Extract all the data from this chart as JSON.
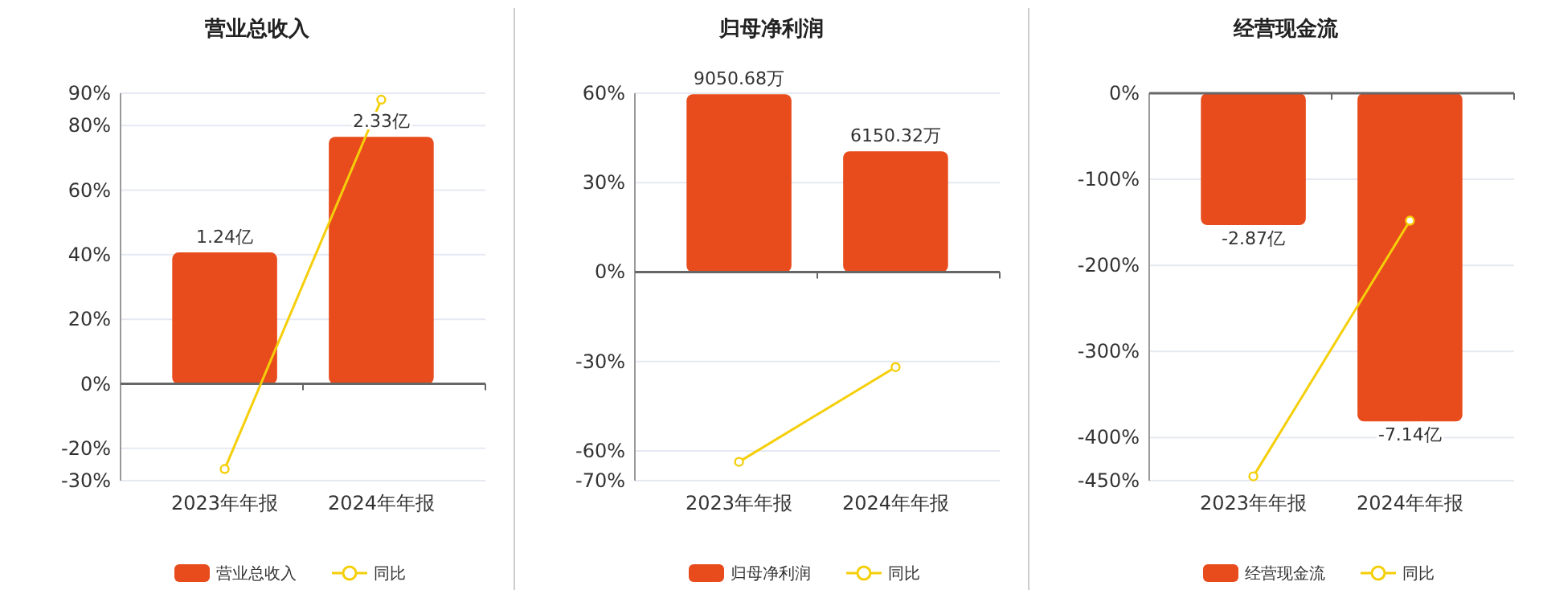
{
  "chart_data": [
    {
      "type": "bar",
      "title": "营业总收入",
      "categories": [
        "2023年年报",
        "2024年年报"
      ],
      "series": [
        {
          "name": "营业总收入",
          "axis": "y2",
          "color": "#e84c1c",
          "values": [
            1.24,
            2.33
          ],
          "value_labels": [
            "1.24亿",
            "2.33亿"
          ]
        },
        {
          "name": "同比",
          "type": "line",
          "color": "#f5cf0a",
          "values": [
            -26.4,
            88
          ]
        }
      ],
      "ylim": [
        -30,
        90
      ],
      "yticks": [
        {
          "value": -30,
          "label": "-30%"
        },
        {
          "value": -20,
          "label": "-20%"
        },
        {
          "value": 0,
          "label": "0%"
        },
        {
          "value": 20,
          "label": "20%"
        },
        {
          "value": 40,
          "label": "40%"
        },
        {
          "value": 60,
          "label": "60%"
        },
        {
          "value": 80,
          "label": "80%"
        },
        {
          "value": 90,
          "label": "90%"
        }
      ],
      "y2lim": [
        -0.91,
        2.74
      ],
      "grid": "y",
      "legend": "bottom",
      "marker": "circle"
    },
    {
      "type": "bar",
      "title": "归母净利润",
      "categories": [
        "2023年年报",
        "2024年年报"
      ],
      "series": [
        {
          "name": "归母净利润",
          "axis": "y2",
          "color": "#e84c1c",
          "values": [
            9050.68,
            6150.32
          ],
          "value_labels": [
            "9050.68万",
            "6150.32万"
          ]
        },
        {
          "name": "同比",
          "type": "line",
          "color": "#f5cf0a",
          "values": [
            -63.7,
            -31.9
          ]
        }
      ],
      "ylim": [
        -70,
        60
      ],
      "yticks": [
        {
          "value": -70,
          "label": "-70%"
        },
        {
          "value": -60,
          "label": "-60%"
        },
        {
          "value": -30,
          "label": "-30%"
        },
        {
          "value": 0,
          "label": "0%"
        },
        {
          "value": 30,
          "label": "30%"
        },
        {
          "value": 60,
          "label": "60%"
        }
      ],
      "y2lim": [
        -10610,
        9100
      ],
      "grid": "y",
      "legend": "bottom",
      "marker": "circle"
    },
    {
      "type": "bar",
      "title": "经营现金流",
      "categories": [
        "2023年年报",
        "2024年年报"
      ],
      "series": [
        {
          "name": "经营现金流",
          "axis": "y2",
          "color": "#e84c1c",
          "values": [
            -2.87,
            -7.14
          ],
          "value_labels": [
            "-2.87亿",
            "-7.14亿"
          ]
        },
        {
          "name": "同比",
          "type": "line",
          "color": "#f5cf0a",
          "values": [
            -445,
            -148
          ]
        }
      ],
      "ylim": [
        -450,
        0
      ],
      "yticks": [
        {
          "value": -450,
          "label": "-450%"
        },
        {
          "value": -400,
          "label": "-400%"
        },
        {
          "value": -300,
          "label": "-300%"
        },
        {
          "value": -200,
          "label": "-200%"
        },
        {
          "value": -100,
          "label": "-100%"
        },
        {
          "value": 0,
          "label": "0%"
        }
      ],
      "y2lim": [
        -8.43,
        0
      ],
      "grid": "y",
      "legend": "bottom",
      "marker": "circle"
    }
  ]
}
